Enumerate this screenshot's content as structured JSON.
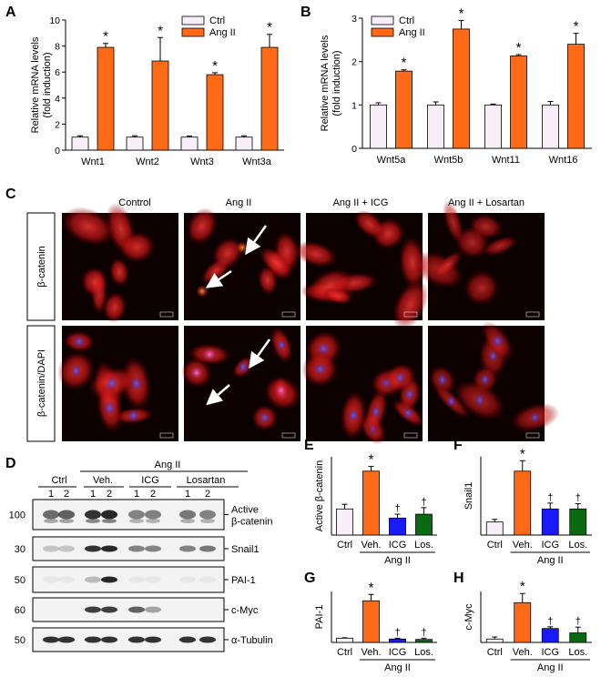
{
  "panels": {
    "A": "A",
    "B": "B",
    "C": "C",
    "D": "D",
    "E": "E",
    "F": "F",
    "G": "G",
    "H": "H"
  },
  "colors": {
    "ctrl": "#f7eef8",
    "angii": "#ff6a16",
    "icg": "#1a1aff",
    "losartan": "#0a6a12"
  },
  "micro": {
    "columns": [
      "Control",
      "Ang II",
      "Ang II + ICG",
      "Ang II + Losartan"
    ],
    "rows": [
      "β-catenin",
      "β-catenin/DAPI"
    ]
  },
  "blot": {
    "group_top": "Ang II",
    "groups": [
      "Ctrl",
      "Veh.",
      "ICG",
      "Losartan"
    ],
    "lane_numbers": [
      "1",
      "2",
      "1",
      "2",
      "1",
      "2",
      "1",
      "2"
    ],
    "bands": [
      {
        "mw": "100",
        "label_line1": "Active",
        "label_line2": "β-catenin"
      },
      {
        "mw": "30",
        "label_line1": "Snail1",
        "label_line2": ""
      },
      {
        "mw": "50",
        "label_line1": "PAI-1",
        "label_line2": ""
      },
      {
        "mw": "60",
        "label_line1": "c-Myc",
        "label_line2": ""
      },
      {
        "mw": "50",
        "label_line1": "α-Tubulin",
        "label_line2": ""
      }
    ]
  },
  "chart_data": [
    {
      "panel": "A",
      "type": "bar",
      "categories": [
        "Wnt1",
        "Wnt2",
        "Wnt3",
        "Wnt3a"
      ],
      "series": [
        {
          "name": "Ctrl",
          "values": [
            1,
            1,
            1,
            1
          ],
          "errors": [
            0.1,
            0.1,
            0.08,
            0.1
          ],
          "marks": [
            "",
            "",
            "",
            ""
          ]
        },
        {
          "name": "Ang II",
          "values": [
            7.9,
            6.85,
            5.8,
            7.9
          ],
          "errors": [
            0.3,
            1.8,
            0.15,
            1.0
          ],
          "marks": [
            "*",
            "*",
            "*",
            "*"
          ]
        }
      ],
      "ylabel": "Relative mRNA levels\n(fold induction)",
      "ylim": [
        0,
        10
      ],
      "yticks": [
        0,
        2,
        4,
        6,
        8,
        10
      ],
      "legend": "top-right"
    },
    {
      "panel": "B",
      "type": "bar",
      "categories": [
        "Wnt5a",
        "Wnt5b",
        "Wnt11",
        "Wnt16"
      ],
      "series": [
        {
          "name": "Ctrl",
          "values": [
            1,
            1,
            1,
            1
          ],
          "errors": [
            0.05,
            0.07,
            0.02,
            0.08
          ],
          "marks": [
            "",
            "",
            "",
            ""
          ]
        },
        {
          "name": "Ang II",
          "values": [
            1.78,
            2.75,
            2.13,
            2.4
          ],
          "errors": [
            0.03,
            0.2,
            0.03,
            0.25
          ],
          "marks": [
            "*",
            "*",
            "*",
            "*"
          ]
        }
      ],
      "ylabel": "Relative mRNA levels\n(fold induction)",
      "ylim": [
        0,
        3
      ],
      "yticks": [
        0,
        1,
        2,
        3
      ],
      "legend": "top-left"
    },
    {
      "panel": "E",
      "type": "bar",
      "categories": [
        "Ctrl",
        "Veh.",
        "ICG",
        "Los."
      ],
      "values": [
        1.0,
        2.45,
        0.65,
        0.8
      ],
      "errors": [
        0.18,
        0.18,
        0.15,
        0.25
      ],
      "marks": [
        "",
        "*",
        "†",
        "†"
      ],
      "group_label": "Ang II",
      "ylabel": "Active β-catenin",
      "ylim": [
        0,
        3
      ]
    },
    {
      "panel": "F",
      "type": "bar",
      "categories": [
        "Ctrl",
        "Veh.",
        "ICG",
        "Los."
      ],
      "values": [
        1.0,
        4.9,
        2.0,
        2.0
      ],
      "errors": [
        0.2,
        0.8,
        0.45,
        0.4
      ],
      "marks": [
        "",
        "*",
        "†",
        "†"
      ],
      "group_label": "Ang II",
      "ylabel": "Snail1",
      "ylim": [
        0,
        6
      ]
    },
    {
      "panel": "G",
      "type": "bar",
      "categories": [
        "Ctrl",
        "Veh.",
        "ICG",
        "Los."
      ],
      "values": [
        1.0,
        9.8,
        0.8,
        0.7
      ],
      "errors": [
        0.1,
        1.5,
        0.2,
        0.3
      ],
      "marks": [
        "",
        "*",
        "†",
        "†"
      ],
      "group_label": "Ang II",
      "ylabel": "PAI-1",
      "ylim": [
        0,
        12
      ]
    },
    {
      "panel": "H",
      "type": "bar",
      "categories": [
        "Ctrl",
        "Veh.",
        "ICG",
        "Los."
      ],
      "values": [
        1.0,
        11.7,
        4.1,
        2.8
      ],
      "errors": [
        0.6,
        2.7,
        0.5,
        1.7
      ],
      "marks": [
        "",
        "*",
        "†",
        "†"
      ],
      "group_label": "Ang II",
      "ylabel": "c-Myc",
      "ylim": [
        0,
        15
      ]
    }
  ]
}
